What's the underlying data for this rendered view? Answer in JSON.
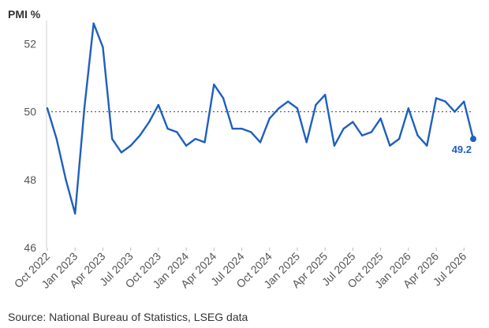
{
  "chart_data": {
    "type": "line",
    "title": "",
    "ylabel": "PMI %",
    "xlabel": "",
    "ylim": [
      46,
      52.5
    ],
    "yticks": [
      46,
      48,
      50,
      52
    ],
    "reference_line": 50,
    "grid": false,
    "line_color": "#1f5fbf",
    "reference_color": "#555555",
    "x_tick_labels": [
      {
        "index": 0,
        "label": "Oct 2022"
      },
      {
        "index": 3,
        "label": "Jan 2023"
      },
      {
        "index": 6,
        "label": "Apr 2023"
      },
      {
        "index": 9,
        "label": "Jul 2023"
      },
      {
        "index": 12,
        "label": "Oct 2023"
      },
      {
        "index": 15,
        "label": "Jan 2024"
      },
      {
        "index": 18,
        "label": "Apr 2024"
      },
      {
        "index": 21,
        "label": "Jul 2024"
      },
      {
        "index": 24,
        "label": "Oct 2024"
      },
      {
        "index": 27,
        "label": "Jan 2025"
      },
      {
        "index": 30,
        "label": "Apr 2025"
      },
      {
        "index": 33,
        "label": "Jul 2025"
      },
      {
        "index": 36,
        "label": "Oct 2025"
      },
      {
        "index": 39,
        "label": "Jan 2026"
      },
      {
        "index": 42,
        "label": "Apr 2026"
      },
      {
        "index": 45,
        "label": "Jul 2026"
      }
    ],
    "series": [
      {
        "values": [
          50.1,
          49.2,
          48.0,
          47.0,
          50.1,
          52.6,
          51.9,
          49.2,
          48.8,
          49.0,
          49.3,
          49.7,
          50.2,
          49.5,
          49.4,
          49.0,
          49.2,
          49.1,
          50.8,
          50.4,
          49.5,
          49.5,
          49.4,
          49.1,
          49.8,
          50.1,
          50.3,
          50.1,
          49.1,
          50.2,
          50.5,
          49.0,
          49.5,
          49.7,
          49.3,
          49.4,
          49.8,
          49.0,
          49.2,
          50.1,
          49.3,
          49.0,
          50.4,
          50.3,
          50.0,
          50.3,
          49.2
        ]
      }
    ],
    "last_value_label": "49.2"
  },
  "source": "Source: National Bureau of Statistics, LSEG data"
}
